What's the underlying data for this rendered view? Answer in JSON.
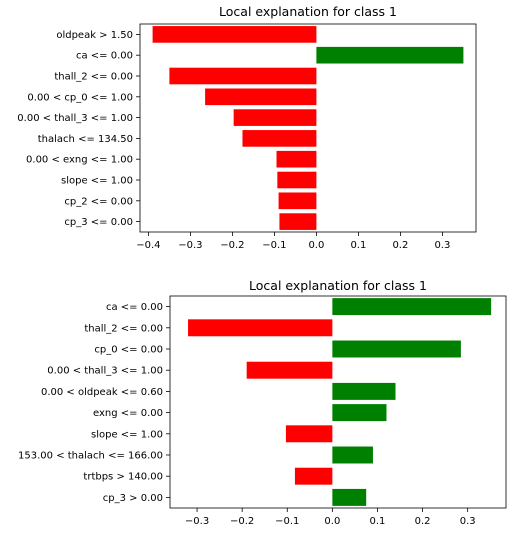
{
  "chart_data": [
    {
      "type": "bar",
      "orientation": "horizontal",
      "title": "Local explanation for class 1",
      "categories": [
        "oldpeak > 1.50",
        "ca <= 0.00",
        "thall_2 <= 0.00",
        "0.00 < cp_0 <= 1.00",
        "0.00 < thall_3 <= 1.00",
        "thalach <= 134.50",
        "0.00 < exng <= 1.00",
        "slope <= 1.00",
        "cp_2 <= 0.00",
        "cp_3 <= 0.00"
      ],
      "values": [
        -0.39,
        0.35,
        -0.35,
        -0.265,
        -0.197,
        -0.176,
        -0.095,
        -0.093,
        -0.09,
        -0.088
      ],
      "xlim": [
        -0.42,
        0.38
      ],
      "xticks": [
        -0.4,
        -0.3,
        -0.2,
        -0.1,
        0.0,
        0.1,
        0.2,
        0.3
      ],
      "xtick_labels": [
        "−0.4",
        "−0.3",
        "−0.2",
        "−0.1",
        "0.0",
        "0.1",
        "0.2",
        "0.3"
      ],
      "colors": {
        "positive": "#008000",
        "negative": "#ff0000"
      },
      "grid": false,
      "legend": "none"
    },
    {
      "type": "bar",
      "orientation": "horizontal",
      "title": "Local explanation for class 1",
      "categories": [
        "ca <= 0.00",
        "thall_2 <= 0.00",
        "cp_0 <= 0.00",
        "0.00 < thall_3 <= 1.00",
        "0.00 < oldpeak <= 0.60",
        "exng <= 0.00",
        "slope <= 1.00",
        "153.00 < thalach <= 166.00",
        "trtbps > 140.00",
        "cp_3 > 0.00"
      ],
      "values": [
        0.352,
        -0.32,
        0.285,
        -0.19,
        0.14,
        0.12,
        -0.103,
        0.09,
        -0.083,
        0.075
      ],
      "xlim": [
        -0.36,
        0.385
      ],
      "xticks": [
        -0.3,
        -0.2,
        -0.1,
        0.0,
        0.1,
        0.2,
        0.3
      ],
      "xtick_labels": [
        "−0.3",
        "−0.2",
        "−0.1",
        "0.0",
        "0.1",
        "0.2",
        "0.3"
      ],
      "colors": {
        "positive": "#008000",
        "negative": "#ff0000"
      },
      "grid": false,
      "legend": "none"
    }
  ]
}
